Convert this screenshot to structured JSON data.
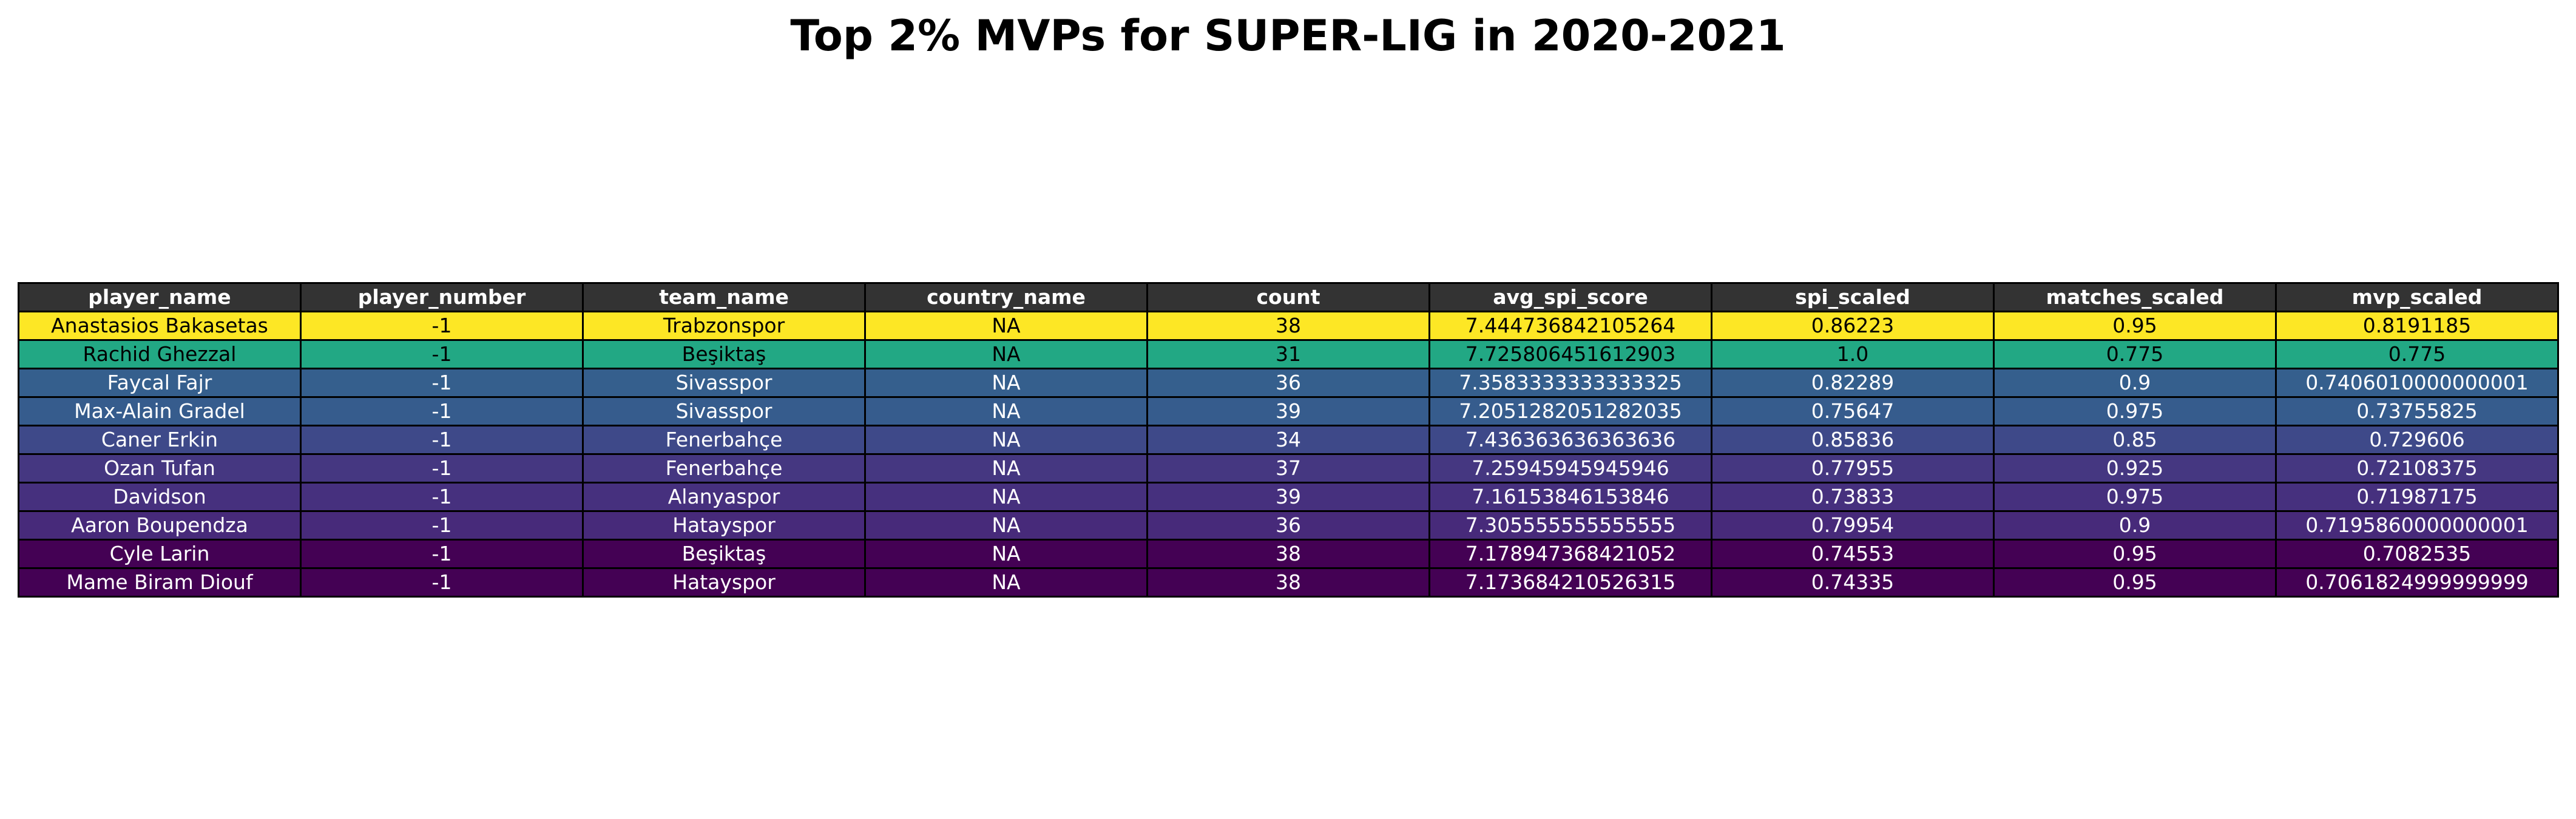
{
  "chart_data": {
    "type": "table",
    "title": "Top 2% MVPs for SUPER-LIG in 2020-2021",
    "header_color": "#333333",
    "columns": [
      "player_name",
      "player_number",
      "team_name",
      "country_name",
      "count",
      "avg_spi_score",
      "spi_scaled",
      "matches_scaled",
      "mvp_scaled"
    ],
    "rows": [
      {
        "cells": [
          "Anastasios Bakasetas",
          "-1",
          "Trabzonspor",
          "NA",
          "38",
          "7.444736842105264",
          "0.86223",
          "0.95",
          "0.8191185"
        ],
        "color": "#fde725",
        "text_color": "#000000"
      },
      {
        "cells": [
          "Rachid Ghezzal",
          "-1",
          "Beşiktaş",
          "NA",
          "31",
          "7.725806451612903",
          "1.0",
          "0.775",
          "0.775"
        ],
        "color": "#22a884",
        "text_color": "#000000"
      },
      {
        "cells": [
          "Faycal Fajr",
          "-1",
          "Sivasspor",
          "NA",
          "36",
          "7.3583333333333325",
          "0.82289",
          "0.9",
          "0.7406010000000001"
        ],
        "color": "#355f8d",
        "text_color": "#ffffff"
      },
      {
        "cells": [
          "Max-Alain Gradel",
          "-1",
          "Sivasspor",
          "NA",
          "39",
          "7.2051282051282035",
          "0.75647",
          "0.975",
          "0.73755825"
        ],
        "color": "#365c8d",
        "text_color": "#ffffff"
      },
      {
        "cells": [
          "Caner Erkin",
          "-1",
          "Fenerbahçe",
          "NA",
          "34",
          "7.436363636363636",
          "0.85836",
          "0.85",
          "0.729606"
        ],
        "color": "#3e4989",
        "text_color": "#ffffff"
      },
      {
        "cells": [
          "Ozan Tufan",
          "-1",
          "Fenerbahçe",
          "NA",
          "37",
          "7.25945945945946",
          "0.77955",
          "0.925",
          "0.72108375"
        ],
        "color": "#453781",
        "text_color": "#ffffff"
      },
      {
        "cells": [
          "Davidson",
          "-1",
          "Alanyaspor",
          "NA",
          "39",
          "7.16153846153846",
          "0.73833",
          "0.975",
          "0.71987175"
        ],
        "color": "#46307e",
        "text_color": "#ffffff"
      },
      {
        "cells": [
          "Aaron Boupendza",
          "-1",
          "Hatayspor",
          "NA",
          "36",
          "7.305555555555555",
          "0.79954",
          "0.9",
          "0.7195860000000001"
        ],
        "color": "#472a7a",
        "text_color": "#ffffff"
      },
      {
        "cells": [
          "Cyle Larin",
          "-1",
          "Beşiktaş",
          "NA",
          "38",
          "7.178947368421052",
          "0.74553",
          "0.95",
          "0.7082535"
        ],
        "color": "#440154",
        "text_color": "#ffffff"
      },
      {
        "cells": [
          "Mame Biram Diouf",
          "-1",
          "Hatayspor",
          "NA",
          "38",
          "7.173684210526315",
          "0.74335",
          "0.95",
          "0.7061824999999999"
        ],
        "color": "#440154",
        "text_color": "#ffffff"
      }
    ]
  }
}
